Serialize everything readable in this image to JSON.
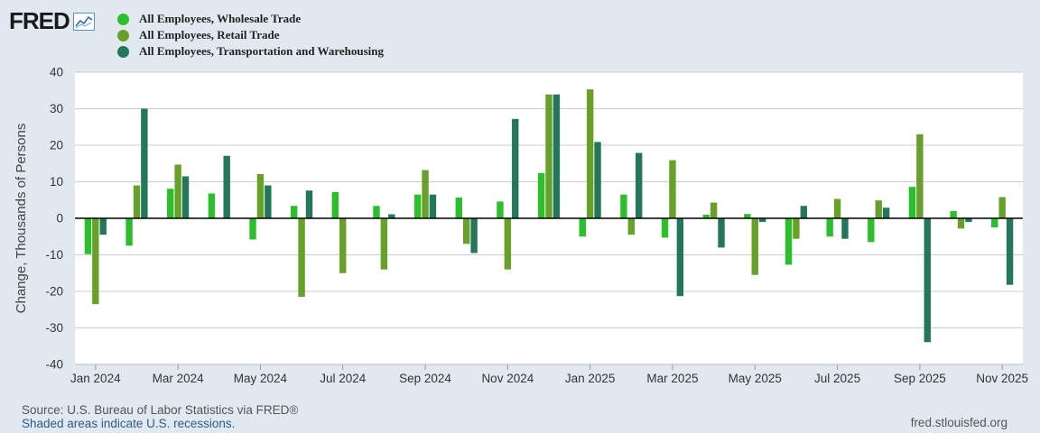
{
  "logo": {
    "text": "FRED",
    "icon": "fred-chart-icon"
  },
  "footer": {
    "source": "Source: U.S. Bureau of Labor Statistics via FRED®",
    "recessions": "Shaded areas indicate U.S. recessions.",
    "site": "fred.stlouisfed.org"
  },
  "chart_data": {
    "type": "bar",
    "ylabel": "Change, Thousands of Persons",
    "ylim": [
      -40,
      40
    ],
    "yticks": [
      40,
      30,
      20,
      10,
      0,
      -10,
      -20,
      -30,
      -40
    ],
    "grid": true,
    "legend_position": "top-left",
    "categories": [
      "Jan 2024",
      "Feb 2024",
      "Mar 2024",
      "Apr 2024",
      "May 2024",
      "Jun 2024",
      "Jul 2024",
      "Aug 2024",
      "Sep 2024",
      "Oct 2024",
      "Nov 2024",
      "Dec 2024",
      "Jan 2025",
      "Feb 2025",
      "Mar 2025",
      "Apr 2025",
      "May 2025",
      "Jun 2025",
      "Jul 2025",
      "Aug 2025",
      "Sep 2025",
      "Oct 2025",
      "Nov 2025"
    ],
    "xtick_labels": [
      "Jan 2024",
      "Mar 2024",
      "May 2024",
      "Jul 2024",
      "Sep 2024",
      "Nov 2024",
      "Jan 2025",
      "Mar 2025",
      "May 2025",
      "Jul 2025",
      "Sep 2025",
      "Nov 2025"
    ],
    "series": [
      {
        "name": "All Employees, Wholesale Trade",
        "color": "#2bc02b",
        "values": [
          -9.8,
          -7.5,
          8.1,
          6.8,
          -5.8,
          3.4,
          7.2,
          3.4,
          6.5,
          5.7,
          4.6,
          12.4,
          -5.0,
          6.5,
          -5.3,
          1.0,
          1.2,
          -12.7,
          -5.0,
          -6.5,
          8.6,
          2.0,
          -2.5
        ]
      },
      {
        "name": "All Employees, Retail Trade",
        "color": "#68a129",
        "values": [
          -23.5,
          9.0,
          14.7,
          0,
          12.1,
          -21.5,
          -15.0,
          -14.0,
          13.2,
          -7.0,
          -14.0,
          33.9,
          35.3,
          -4.5,
          15.9,
          4.3,
          -15.5,
          -5.6,
          5.3,
          4.9,
          23.0,
          -2.8,
          5.8
        ]
      },
      {
        "name": "All Employees, Transportation and Warehousing",
        "color": "#23785c",
        "values": [
          -4.5,
          30.0,
          11.5,
          17.1,
          9.0,
          7.6,
          0,
          1.1,
          6.5,
          -9.5,
          27.2,
          33.9,
          20.9,
          17.9,
          -21.3,
          -8.0,
          -1.0,
          3.4,
          -5.6,
          2.9,
          -33.9,
          -1.0,
          -18.2
        ]
      }
    ]
  }
}
